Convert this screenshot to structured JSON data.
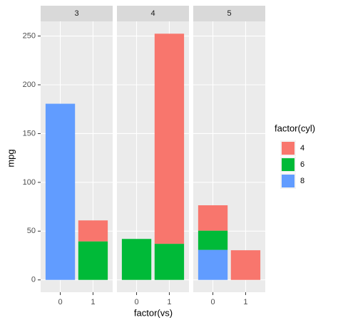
{
  "chart_data": {
    "type": "bar",
    "stacked": true,
    "facets": [
      "3",
      "4",
      "5"
    ],
    "categories": [
      "0",
      "1"
    ],
    "x_label": "factor(vs)",
    "y_label": "mpg",
    "legend_title": "factor(cyl)",
    "legend_position": "right",
    "series": [
      {
        "name": "4",
        "color": "#F8766D",
        "values": [
          [
            null,
            21.5
          ],
          [
            null,
            215.4
          ],
          [
            26,
            30.4
          ]
        ]
      },
      {
        "name": "6",
        "color": "#00BA38",
        "values": [
          [
            null,
            39.5
          ],
          [
            42,
            37
          ],
          [
            19.7,
            null
          ]
        ]
      },
      {
        "name": "8",
        "color": "#619CFF",
        "values": [
          [
            180.6,
            null
          ],
          [
            null,
            null
          ],
          [
            30.8,
            null
          ]
        ]
      }
    ],
    "ylim": [
      -12.62,
      265.02
    ],
    "yticks": [
      0,
      50,
      100,
      150,
      200,
      250
    ],
    "grid": true
  }
}
